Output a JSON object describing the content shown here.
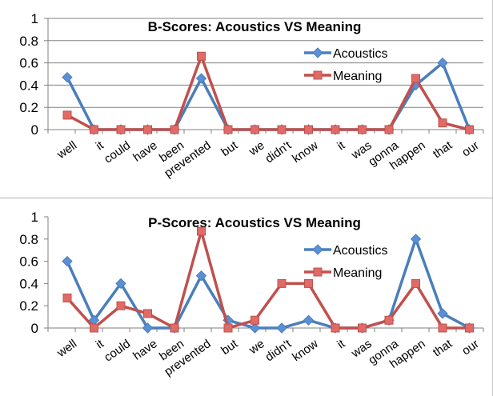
{
  "colors": {
    "acoustics": "#4a7ebb",
    "meaning": "#c0504d",
    "grid": "#808080",
    "acoustics_marker": "#5b8fd6",
    "meaning_marker": "#e06b66"
  },
  "chart_data": [
    {
      "type": "line",
      "title": "B-Scores: Acoustics VS Meaning",
      "categories": [
        "well",
        "it",
        "could",
        "have",
        "been",
        "prevented",
        "but",
        "we",
        "didn't",
        "know",
        "it",
        "was",
        "gonna",
        "happen",
        "that",
        "our"
      ],
      "ylim": [
        0,
        1
      ],
      "yticks": [
        "0",
        "0.2",
        "0.4",
        "0.6",
        "0.8",
        "1"
      ],
      "grid": true,
      "legend_position": "right",
      "series": [
        {
          "name": "Acoustics",
          "marker": "diamond",
          "values": [
            0.47,
            0,
            0,
            0,
            0,
            0.46,
            0,
            0,
            0,
            0,
            0,
            0,
            0,
            0.4,
            0.6,
            0
          ]
        },
        {
          "name": "Meaning",
          "marker": "square",
          "values": [
            0.13,
            0,
            0,
            0,
            0,
            0.66,
            0,
            0,
            0,
            0,
            0,
            0,
            0,
            0.46,
            0.06,
            0
          ]
        }
      ]
    },
    {
      "type": "line",
      "title": "P-Scores: Acoustics VS Meaning",
      "categories": [
        "well",
        "it",
        "could",
        "have",
        "been",
        "prevented",
        "but",
        "we",
        "didn't",
        "know",
        "it",
        "was",
        "gonna",
        "happen",
        "that",
        "our"
      ],
      "ylim": [
        0,
        1
      ],
      "yticks": [
        "0",
        "0.2",
        "0.4",
        "0.6",
        "0.8",
        "1"
      ],
      "grid": false,
      "legend_position": "right",
      "series": [
        {
          "name": "Acoustics",
          "marker": "diamond",
          "values": [
            0.6,
            0.07,
            0.4,
            0,
            0,
            0.47,
            0.07,
            0,
            0,
            0.07,
            0,
            0,
            0.07,
            0.8,
            0.13,
            0
          ]
        },
        {
          "name": "Meaning",
          "marker": "square",
          "values": [
            0.27,
            0,
            0.2,
            0.13,
            0,
            0.87,
            0,
            0.07,
            0.4,
            0.4,
            0,
            0,
            0.07,
            0.4,
            0,
            0
          ]
        }
      ]
    }
  ]
}
